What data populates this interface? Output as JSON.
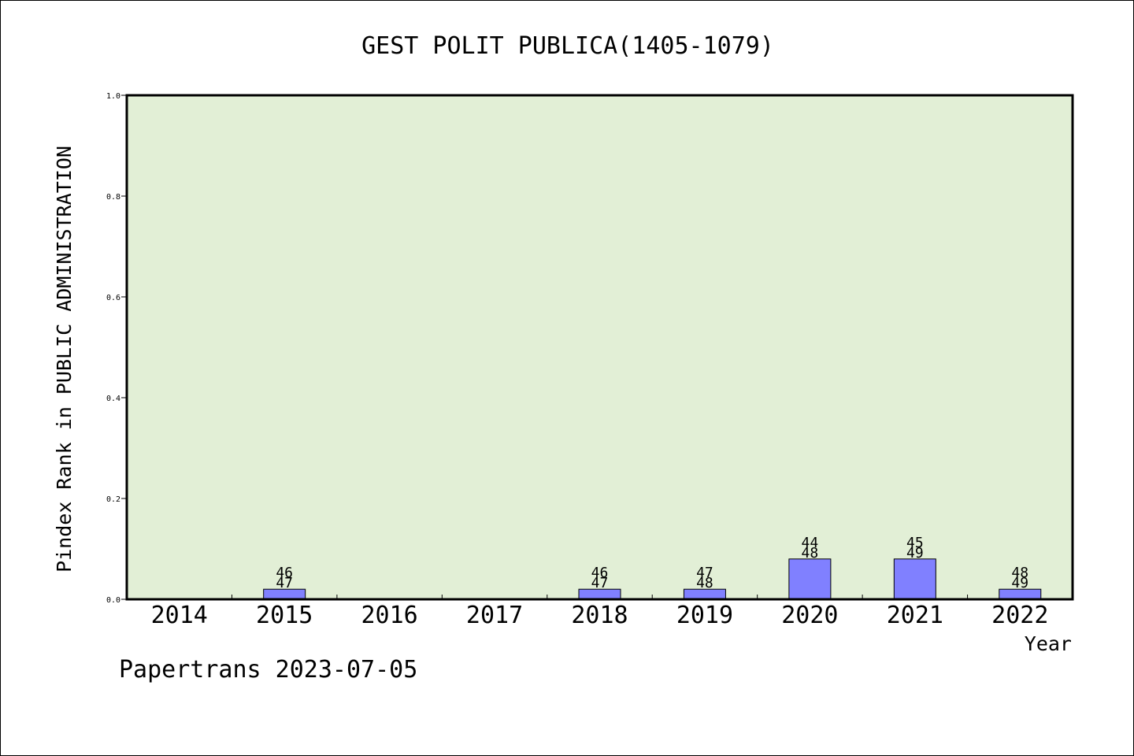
{
  "footer": "Papertrans 2023-07-05",
  "colors": {
    "plot_background": "#e2efd6",
    "bar_fill": "#8080ff",
    "bar_stroke": "#000000",
    "axis": "#000000",
    "page_background": "#ffffff"
  },
  "chart_data": {
    "type": "bar",
    "title": "GEST POLIT PUBLICA(1405-1079)",
    "xlabel": "Year",
    "ylabel": "Pindex Rank in PUBLIC ADMINISTRATION",
    "categories": [
      "2014",
      "2015",
      "2016",
      "2017",
      "2018",
      "2019",
      "2020",
      "2021",
      "2022"
    ],
    "values": [
      0,
      0.02,
      0,
      0,
      0.02,
      0.02,
      0.08,
      0.08,
      0.02
    ],
    "bar_labels": [
      [],
      [
        "46",
        "47"
      ],
      [],
      [],
      [
        "46",
        "47"
      ],
      [
        "47",
        "48"
      ],
      [
        "44",
        "48"
      ],
      [
        "45",
        "49"
      ],
      [
        "48",
        "49"
      ]
    ],
    "ylim": [
      0,
      1.0
    ],
    "yticks": [
      "0.0",
      "0.2",
      "0.4",
      "0.6",
      "0.8",
      "1.0"
    ],
    "grid": false,
    "legend": "none"
  }
}
